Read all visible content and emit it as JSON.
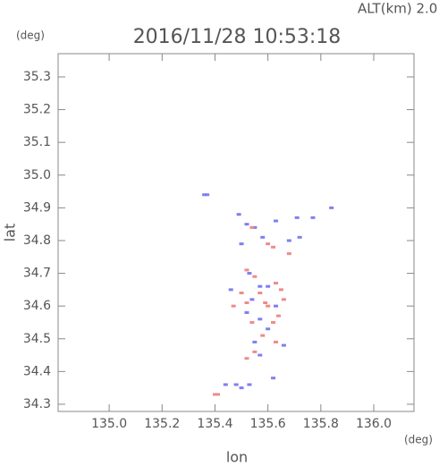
{
  "chart_data": {
    "type": "scatter",
    "title": "2016/11/28 10:53:18",
    "subtitle": "ALT(km) 2.0",
    "y_unit": "(deg)",
    "x_unit": "(deg)",
    "x_label": "lon",
    "y_label": "lat",
    "xlim": [
      134.807,
      136.152
    ],
    "ylim": [
      34.278,
      35.371
    ],
    "xticks": [
      {
        "value": 135.0,
        "label": "135.0"
      },
      135.2,
      135.4,
      135.6,
      135.8,
      {
        "value": 136.0,
        "label": "136.0"
      }
    ],
    "yticks": [
      34.3,
      34.4,
      34.5,
      34.6,
      34.7,
      34.8,
      34.9,
      {
        "value": 35.0,
        "label": "35.0"
      },
      35.1,
      35.2,
      35.3
    ],
    "series": [
      {
        "color": "#7f7ff0",
        "x": [
          135.36,
          135.37,
          135.49,
          135.52,
          135.55,
          135.58,
          135.63,
          135.71,
          135.77,
          135.84,
          135.68,
          135.72,
          135.53,
          135.57,
          135.6,
          135.54,
          135.63,
          135.52,
          135.57,
          135.6,
          135.55,
          135.66,
          135.57,
          135.48,
          135.5,
          135.53,
          135.44,
          135.62,
          135.5,
          135.46
        ],
        "y": [
          34.94,
          34.94,
          34.88,
          34.85,
          34.84,
          34.81,
          34.86,
          34.87,
          34.87,
          34.9,
          34.8,
          34.81,
          34.7,
          34.66,
          34.66,
          34.62,
          34.6,
          34.58,
          34.56,
          34.53,
          34.49,
          34.48,
          34.45,
          34.36,
          34.35,
          34.36,
          34.36,
          34.38,
          34.79,
          34.65
        ]
      },
      {
        "color": "#f08a8a",
        "x": [
          135.54,
          135.6,
          135.62,
          135.68,
          135.52,
          135.55,
          135.63,
          135.65,
          135.5,
          135.52,
          135.59,
          135.64,
          135.54,
          135.62,
          135.58,
          135.63,
          135.55,
          135.52,
          135.4,
          135.41,
          135.6,
          135.47,
          135.66,
          135.57
        ],
        "y": [
          34.84,
          34.79,
          34.78,
          34.76,
          34.71,
          34.69,
          34.67,
          34.65,
          34.64,
          34.61,
          34.61,
          34.57,
          34.55,
          34.55,
          34.51,
          34.49,
          34.46,
          34.44,
          34.33,
          34.33,
          34.6,
          34.6,
          34.62,
          34.64
        ]
      }
    ]
  }
}
